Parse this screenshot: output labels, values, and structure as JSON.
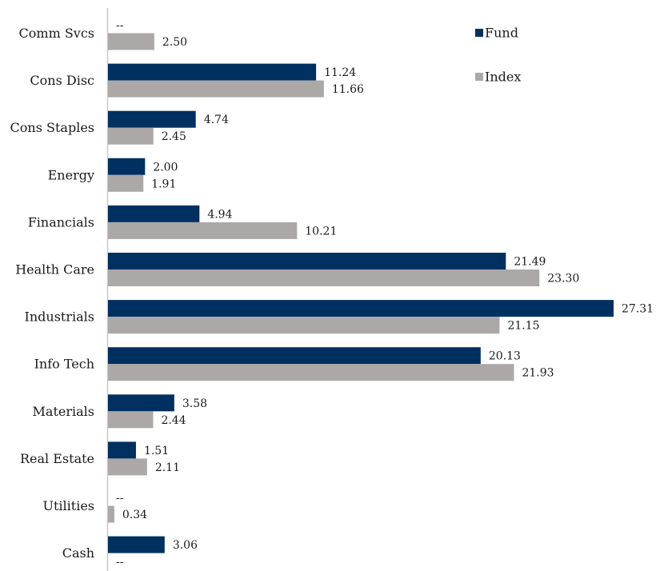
{
  "chart_data": {
    "type": "bar",
    "orientation": "horizontal",
    "categories": [
      "Comm Svcs",
      "Cons Disc",
      "Cons Staples",
      "Energy",
      "Financials",
      "Health Care",
      "Industrials",
      "Info Tech",
      "Materials",
      "Real Estate",
      "Utilities",
      "Cash"
    ],
    "series": [
      {
        "name": "Fund",
        "color": "#003060",
        "values": [
          null,
          11.24,
          4.74,
          2.0,
          4.94,
          21.49,
          27.31,
          20.13,
          3.58,
          1.51,
          null,
          3.06
        ],
        "labels": [
          "--",
          "11.24",
          "4.74",
          "2.00",
          "4.94",
          "21.49",
          "27.31",
          "20.13",
          "3.58",
          "1.51",
          "--",
          "3.06"
        ]
      },
      {
        "name": "Index",
        "color": "#aba8a7",
        "values": [
          2.5,
          11.66,
          2.45,
          1.91,
          10.21,
          23.3,
          21.15,
          21.93,
          2.44,
          2.11,
          0.34,
          null
        ],
        "labels": [
          "2.50",
          "11.66",
          "2.45",
          "1.91",
          "10.21",
          "23.30",
          "21.15",
          "21.93",
          "2.44",
          "2.11",
          "0.34",
          "--"
        ]
      }
    ],
    "xlim": [
      0,
      27.31
    ],
    "grid": false,
    "legend_position": "top-right",
    "title": "",
    "xlabel": "",
    "ylabel": ""
  }
}
